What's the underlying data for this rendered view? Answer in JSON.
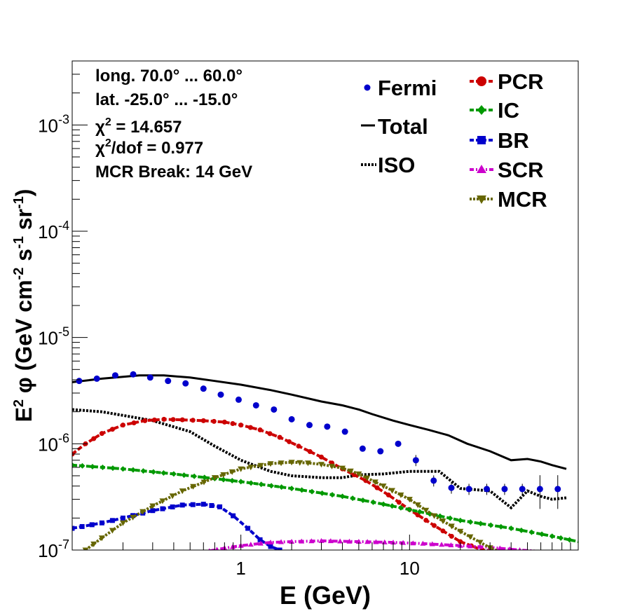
{
  "chart_data": {
    "type": "line",
    "x_scale": "log",
    "y_scale": "log",
    "xlim": [
      0.1,
      100
    ],
    "ylim": [
      1e-07,
      0.004
    ],
    "xlabel": "E (GeV)",
    "ylabel": {
      "p1": "E",
      "p1sup": "2",
      "p2": " φ (GeV cm",
      "p2sup": "-2",
      "p3": " s",
      "p3sup": "-1",
      "p4": " sr",
      "p4sup": "-1",
      "p5": ")"
    },
    "x_ticks": [
      {
        "v": 1,
        "label": "1"
      },
      {
        "v": 10,
        "label": "10"
      }
    ],
    "y_ticks": [
      {
        "v": 1e-07,
        "base": "10",
        "exp": "-7"
      },
      {
        "v": 1e-06,
        "base": "10",
        "exp": "-6"
      },
      {
        "v": 1e-05,
        "base": "10",
        "exp": "-5"
      },
      {
        "v": 0.0001,
        "base": "10",
        "exp": "-4"
      },
      {
        "v": 0.001,
        "base": "10",
        "exp": "-3"
      }
    ],
    "info": {
      "line1": "long. 70.0° ... 60.0°",
      "line2": "lat. -25.0° ... -15.0°",
      "chi_sym": "χ",
      "chi_sup": "2",
      "line3_rest": " = 14.657",
      "line4_rest": "/dof = 0.977",
      "line5": "MCR Break: 14 GeV"
    },
    "legend_left": [
      {
        "name": "Fermi",
        "kind": "points",
        "color": "#0000cc"
      },
      {
        "name": "Total",
        "kind": "solid",
        "color": "#000000"
      },
      {
        "name": "ISO",
        "kind": "dotted",
        "color": "#000000"
      }
    ],
    "legend_right": [
      {
        "name": "PCR",
        "kind": "circle",
        "color": "#cc0000"
      },
      {
        "name": "IC",
        "kind": "diamond",
        "color": "#009900"
      },
      {
        "name": "BR",
        "kind": "square",
        "color": "#0000cc"
      },
      {
        "name": "SCR",
        "kind": "triangle-up",
        "color": "#cc00cc"
      },
      {
        "name": "MCR",
        "kind": "triangle-down",
        "color": "#666600"
      }
    ],
    "fermi": {
      "x": [
        0.11,
        0.14,
        0.18,
        0.23,
        0.29,
        0.37,
        0.47,
        0.6,
        0.76,
        0.97,
        1.23,
        1.57,
        2.0,
        2.55,
        3.25,
        4.14,
        5.27,
        6.72,
        8.56,
        10.9,
        13.9,
        17.7,
        22.5,
        28.7,
        36.6,
        46.6,
        59.3,
        75.6
      ],
      "y": [
        3.9e-06,
        4.1e-06,
        4.4e-06,
        4.5e-06,
        4.2e-06,
        3.9e-06,
        3.7e-06,
        3.3e-06,
        2.9e-06,
        2.6e-06,
        2.3e-06,
        2.1e-06,
        1.7e-06,
        1.5e-06,
        1.45e-06,
        1.3e-06,
        9e-07,
        8.5e-07,
        1e-06,
        7e-07,
        4.5e-07,
        3.85e-07,
        3.75e-07,
        3.75e-07,
        3.75e-07,
        3.75e-07,
        3.75e-07,
        3.75e-07
      ],
      "color": "#0000cc"
    },
    "series": [
      {
        "name": "Total",
        "style": "solid",
        "color": "#000000",
        "x": [
          0.1,
          0.15,
          0.25,
          0.35,
          0.5,
          0.7,
          1.0,
          1.5,
          2.0,
          3.0,
          4.0,
          5.0,
          6.0,
          8.0,
          10,
          13,
          17,
          22,
          30,
          40,
          50,
          60,
          70,
          85
        ],
        "y": [
          3.8e-06,
          4.1e-06,
          4.4e-06,
          4.4e-06,
          4.2e-06,
          3.9e-06,
          3.6e-06,
          3.2e-06,
          2.9e-06,
          2.5e-06,
          2.3e-06,
          2.1e-06,
          1.9e-06,
          1.65e-06,
          1.5e-06,
          1.35e-06,
          1.2e-06,
          1e-06,
          8.5e-07,
          7e-07,
          7.2e-07,
          6.8e-07,
          6.3e-07,
          5.8e-07
        ]
      },
      {
        "name": "ISO",
        "style": "dotted",
        "color": "#000000",
        "x": [
          0.1,
          0.15,
          0.2,
          0.3,
          0.5,
          0.7,
          1.0,
          1.5,
          2.0,
          3.0,
          4.0,
          5.0,
          7.0,
          10,
          13,
          15,
          20,
          30,
          40,
          50,
          60,
          70,
          85
        ],
        "y": [
          2.1e-06,
          2e-06,
          1.85e-06,
          1.65e-06,
          1.3e-06,
          9.5e-07,
          7e-07,
          5.5e-07,
          5e-07,
          4.8e-07,
          4.8e-07,
          5.1e-07,
          5.2e-07,
          5.5e-07,
          5.5e-07,
          5.5e-07,
          3.8e-07,
          3.6e-07,
          2.5e-07,
          3.6e-07,
          3.2e-07,
          3e-07,
          3.1e-07
        ]
      },
      {
        "name": "PCR",
        "style": "dashed",
        "color": "#cc0000",
        "marker": "circle",
        "x": [
          0.1,
          0.12,
          0.15,
          0.2,
          0.27,
          0.35,
          0.45,
          0.6,
          0.8,
          1.0,
          1.3,
          1.7,
          2.2,
          3.0,
          4.0,
          5.5,
          7.5,
          10,
          14,
          20,
          27,
          35
        ],
        "y": [
          8e-07,
          1e-06,
          1.25e-06,
          1.5e-06,
          1.65e-06,
          1.7e-06,
          1.68e-06,
          1.65e-06,
          1.6e-06,
          1.5e-06,
          1.35e-06,
          1.15e-06,
          9.5e-07,
          7.5e-07,
          5.8e-07,
          4.5e-07,
          3.3e-07,
          2.4e-07,
          1.7e-07,
          1.2e-07,
          1e-07,
          9.5e-08
        ]
      },
      {
        "name": "IC",
        "style": "dashed",
        "color": "#009900",
        "marker": "diamond",
        "x": [
          0.1,
          0.2,
          0.4,
          0.7,
          1.0,
          2.0,
          4.0,
          7.0,
          10,
          20,
          40,
          70,
          100
        ],
        "y": [
          6.3e-07,
          5.8e-07,
          5.2e-07,
          4.7e-07,
          4.4e-07,
          3.8e-07,
          3.2e-07,
          2.7e-07,
          2.4e-07,
          1.9e-07,
          1.6e-07,
          1.35e-07,
          1.2e-07
        ]
      },
      {
        "name": "BR",
        "style": "dashed",
        "color": "#0000cc",
        "marker": "square",
        "x": [
          0.1,
          0.15,
          0.2,
          0.3,
          0.45,
          0.6,
          0.75,
          0.9,
          1.1,
          1.3,
          1.5,
          1.7,
          1.8
        ],
        "y": [
          1.6e-07,
          1.8e-07,
          2e-07,
          2.35e-07,
          2.65e-07,
          2.7e-07,
          2.55e-07,
          2.1e-07,
          1.6e-07,
          1.25e-07,
          1.08e-07,
          1e-07,
          9.5e-08
        ]
      },
      {
        "name": "SCR",
        "style": "dashdot",
        "color": "#cc00cc",
        "marker": "triangle-up",
        "x": [
          0.65,
          0.8,
          1.0,
          1.5,
          2.0,
          3.0,
          5.0,
          8.0,
          12,
          20,
          30,
          45,
          55
        ],
        "y": [
          9.8e-08,
          1.04e-07,
          1.1e-07,
          1.18e-07,
          1.2e-07,
          1.22e-07,
          1.2e-07,
          1.18e-07,
          1.15e-07,
          1.1e-07,
          1.06e-07,
          1e-07,
          9.8e-08
        ]
      },
      {
        "name": "MCR",
        "style": "dotted",
        "color": "#666600",
        "marker": "triangle-down",
        "x": [
          0.12,
          0.15,
          0.2,
          0.3,
          0.45,
          0.7,
          1.0,
          1.5,
          2.0,
          2.5,
          3.0,
          4.0,
          5.0,
          7.0,
          10,
          14,
          20,
          30,
          35
        ],
        "y": [
          1e-07,
          1.3e-07,
          1.8e-07,
          2.6e-07,
          3.6e-07,
          4.8e-07,
          5.8e-07,
          6.5e-07,
          6.7e-07,
          6.6e-07,
          6.4e-07,
          5.9e-07,
          5.2e-07,
          4e-07,
          3e-07,
          2.1e-07,
          1.5e-07,
          1.05e-07,
          9.5e-08
        ]
      }
    ]
  }
}
